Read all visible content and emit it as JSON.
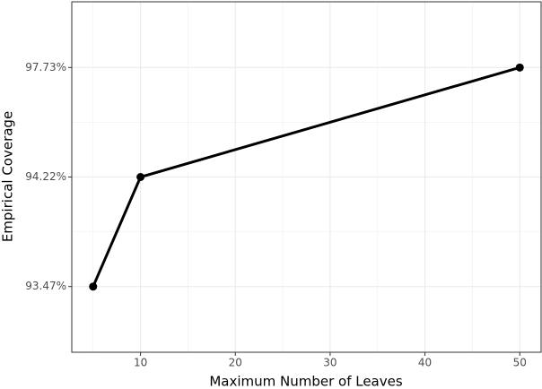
{
  "chart_data": {
    "type": "line",
    "xlabel": "Maximum Number of Leaves",
    "ylabel": "Empirical Coverage",
    "x": [
      5,
      10,
      50
    ],
    "values": [
      93.47,
      94.22,
      97.73
    ],
    "color": "#000000",
    "xlim": [
      2.75,
      52.25
    ],
    "xticks": [
      10,
      20,
      30,
      40,
      50
    ],
    "yscale": "ordinal",
    "yticks": [
      {
        "value": 93.47,
        "label": "93.47%"
      },
      {
        "value": 94.22,
        "label": "94.22%"
      },
      {
        "value": 97.73,
        "label": "97.73%"
      }
    ],
    "grid": true
  }
}
